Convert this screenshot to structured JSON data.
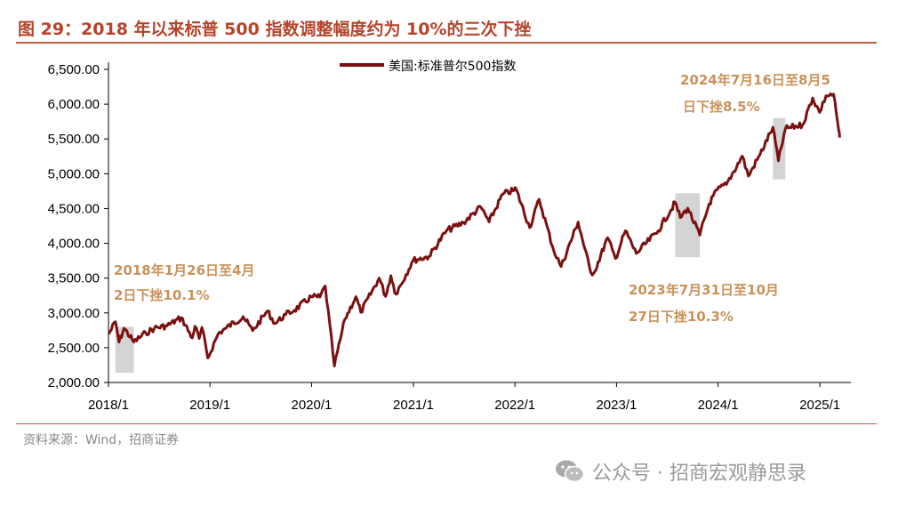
{
  "header": {
    "title": "图 29：2018 年以来标普 500 指数调整幅度约为 10%的三次下挫"
  },
  "footer": {
    "source": "资料来源：Wind，招商证券",
    "watermark": "公众号 · 招商宏观静思录"
  },
  "colors": {
    "series": "#7b1010",
    "accent": "#b5442b",
    "annotation": "#c8925a",
    "highlight": "#cccccc"
  },
  "chart_data": {
    "type": "line",
    "title": "",
    "xlabel": "",
    "ylabel": "",
    "ylim": [
      2000,
      6500
    ],
    "yticks": [
      "2,000.00",
      "2,500.00",
      "3,000.00",
      "3,500.00",
      "4,000.00",
      "4,500.00",
      "5,000.00",
      "5,500.00",
      "6,000.00",
      "6,500.00"
    ],
    "xticks": [
      "2018/1",
      "2019/1",
      "2020/1",
      "2021/1",
      "2022/1",
      "2023/1",
      "2024/1",
      "2025/1"
    ],
    "legend": {
      "position": "top-center"
    },
    "series": [
      {
        "name": "美国:标准普尔500指数",
        "points": [
          [
            "2018-01-02",
            2695
          ],
          [
            "2018-01-26",
            2873
          ],
          [
            "2018-02-08",
            2581
          ],
          [
            "2018-02-26",
            2780
          ],
          [
            "2018-04-02",
            2582
          ],
          [
            "2018-05-15",
            2711
          ],
          [
            "2018-06-15",
            2780
          ],
          [
            "2018-07-31",
            2816
          ],
          [
            "2018-09-20",
            2931
          ],
          [
            "2018-10-29",
            2641
          ],
          [
            "2018-11-08",
            2807
          ],
          [
            "2018-11-23",
            2633
          ],
          [
            "2018-12-03",
            2790
          ],
          [
            "2018-12-24",
            2351
          ],
          [
            "2019-01-31",
            2704
          ],
          [
            "2019-02-28",
            2784
          ],
          [
            "2019-04-30",
            2946
          ],
          [
            "2019-06-03",
            2744
          ],
          [
            "2019-07-26",
            3025
          ],
          [
            "2019-08-23",
            2847
          ],
          [
            "2019-09-30",
            2977
          ],
          [
            "2019-10-31",
            3038
          ],
          [
            "2019-12-31",
            3231
          ],
          [
            "2020-01-31",
            3226
          ],
          [
            "2020-02-19",
            3386
          ],
          [
            "2020-03-23",
            2237
          ],
          [
            "2020-04-30",
            2912
          ],
          [
            "2020-06-08",
            3232
          ],
          [
            "2020-06-26",
            3009
          ],
          [
            "2020-08-31",
            3500
          ],
          [
            "2020-09-23",
            3237
          ],
          [
            "2020-10-12",
            3534
          ],
          [
            "2020-10-30",
            3270
          ],
          [
            "2020-12-31",
            3756
          ],
          [
            "2021-02-26",
            3811
          ],
          [
            "2021-04-30",
            4181
          ],
          [
            "2021-06-30",
            4298
          ],
          [
            "2021-08-31",
            4523
          ],
          [
            "2021-09-30",
            4308
          ],
          [
            "2021-11-18",
            4705
          ],
          [
            "2021-12-31",
            4766
          ],
          [
            "2022-01-03",
            4797
          ],
          [
            "2022-02-23",
            4226
          ],
          [
            "2022-03-29",
            4632
          ],
          [
            "2022-05-20",
            3901
          ],
          [
            "2022-06-16",
            3667
          ],
          [
            "2022-08-16",
            4305
          ],
          [
            "2022-09-30",
            3586
          ],
          [
            "2022-10-12",
            3577
          ],
          [
            "2022-11-30",
            4080
          ],
          [
            "2022-12-28",
            3783
          ],
          [
            "2023-02-02",
            4179
          ],
          [
            "2023-03-13",
            3855
          ],
          [
            "2023-05-31",
            4180
          ],
          [
            "2023-07-31",
            4589
          ],
          [
            "2023-08-18",
            4370
          ],
          [
            "2023-09-14",
            4505
          ],
          [
            "2023-10-27",
            4117
          ],
          [
            "2023-11-30",
            4568
          ],
          [
            "2023-12-29",
            4770
          ],
          [
            "2024-01-31",
            4846
          ],
          [
            "2024-03-28",
            5254
          ],
          [
            "2024-04-19",
            4967
          ],
          [
            "2024-05-31",
            5278
          ],
          [
            "2024-07-16",
            5667
          ],
          [
            "2024-08-05",
            5186
          ],
          [
            "2024-08-30",
            5648
          ],
          [
            "2024-10-31",
            5705
          ],
          [
            "2024-12-06",
            6090
          ],
          [
            "2024-12-31",
            5882
          ],
          [
            "2025-01-23",
            6119
          ],
          [
            "2025-02-19",
            6144
          ],
          [
            "2025-03-10",
            5614
          ],
          [
            "2025-03-13",
            5521
          ]
        ]
      }
    ],
    "highlights": [
      {
        "start": "2018-01-26",
        "end": "2018-04-02",
        "ylow": 2140,
        "yhigh": 2800
      },
      {
        "start": "2023-07-31",
        "end": "2023-10-27",
        "ylow": 3800,
        "yhigh": 4720
      },
      {
        "start": "2024-07-16",
        "end": "2024-08-05",
        "ylow": 4920,
        "yhigh": 5800
      }
    ],
    "annotations": [
      {
        "lines": [
          "2018年1月26日至4月",
          "2日下挫10.1%"
        ]
      },
      {
        "lines": [
          "2023年7月31日至10月",
          "27日下挫10.3%"
        ]
      },
      {
        "lines": [
          "2024年7月16日至8月5",
          "日下挫8.5%"
        ]
      }
    ]
  }
}
